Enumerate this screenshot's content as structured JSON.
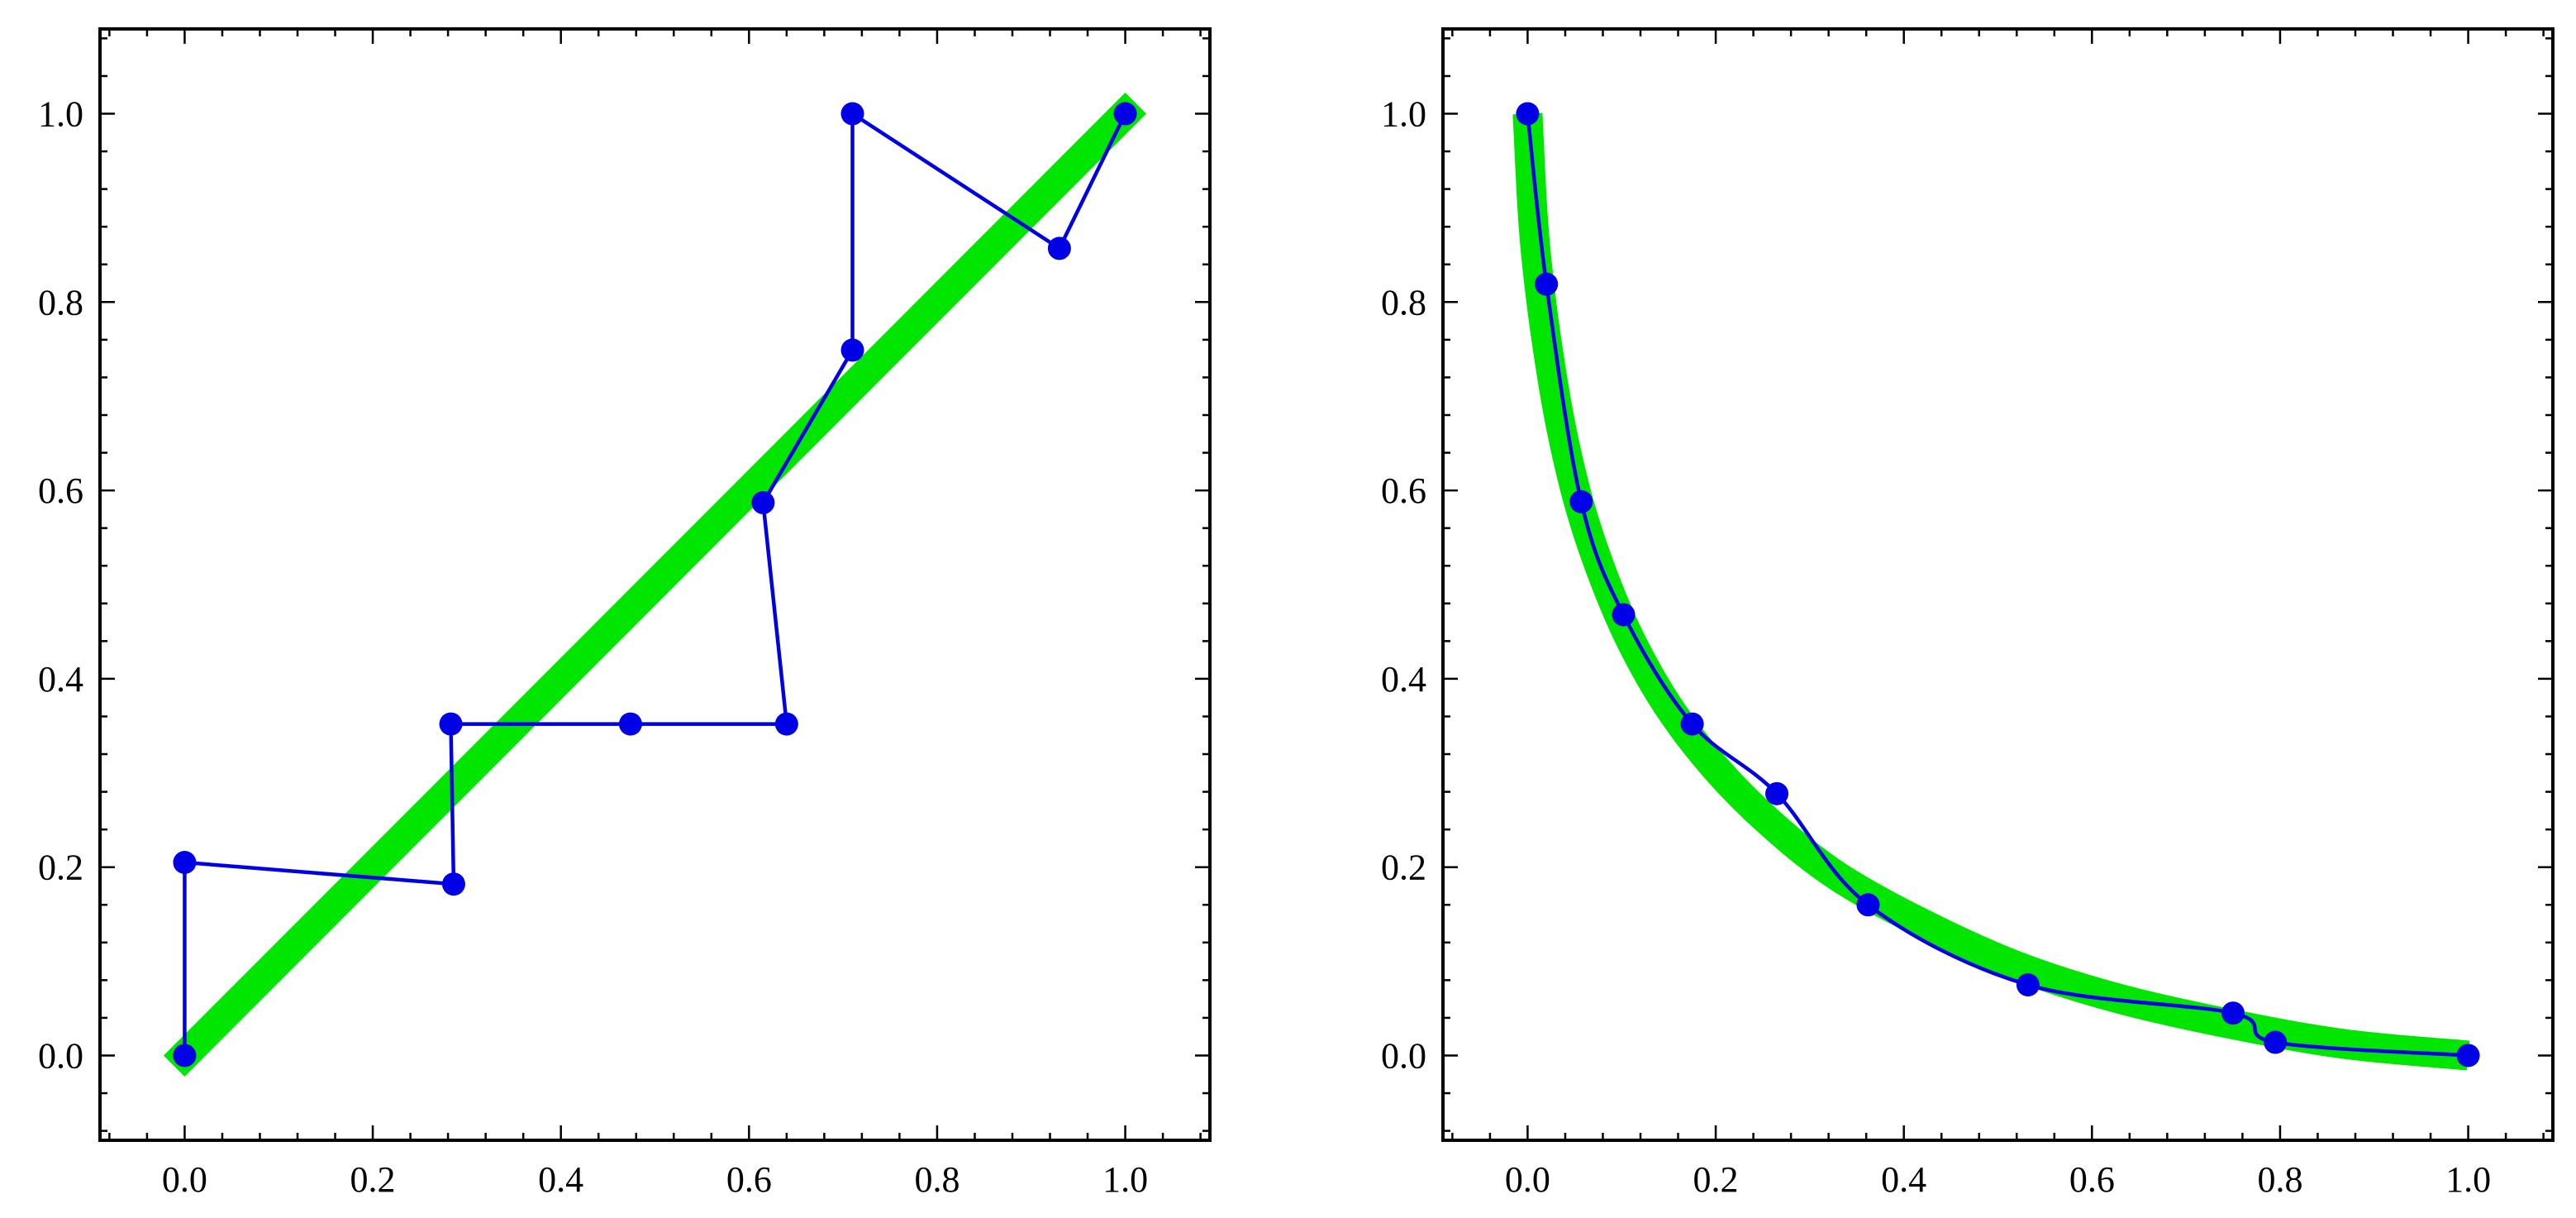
{
  "colors": {
    "reference_band": "#00e600",
    "series": "#0000e6",
    "frame": "#000000",
    "background": "#ffffff"
  },
  "chart_data": [
    {
      "type": "line",
      "title": "",
      "xlabel": "",
      "ylabel": "",
      "xlim": [
        -0.09,
        1.09
      ],
      "ylim": [
        -0.09,
        1.09
      ],
      "x_ticks": [
        0.0,
        0.2,
        0.4,
        0.6,
        0.8,
        1.0
      ],
      "y_ticks": [
        0.0,
        0.2,
        0.4,
        0.6,
        0.8,
        1.0
      ],
      "x_tick_labels": [
        "0.0",
        "0.2",
        "0.4",
        "0.6",
        "0.8",
        "1.0"
      ],
      "y_tick_labels": [
        "0.0",
        "0.2",
        "0.4",
        "0.6",
        "0.8",
        "1.0"
      ],
      "grid": false,
      "reference_curve": {
        "kind": "diagonal",
        "x": [
          0.0,
          1.0
        ],
        "y": [
          0.0,
          1.0
        ]
      },
      "series": [
        {
          "connection": "straight",
          "x": [
            0.0,
            0.0,
            0.286,
            0.283,
            0.474,
            0.64,
            0.615,
            0.71,
            0.71,
            0.93,
            1.0
          ],
          "y": [
            0.0,
            0.205,
            0.182,
            0.352,
            0.352,
            0.352,
            0.587,
            0.749,
            1.0,
            0.857,
            1.0
          ]
        }
      ]
    },
    {
      "type": "line",
      "title": "",
      "xlabel": "",
      "ylabel": "",
      "xlim": [
        -0.09,
        1.09
      ],
      "ylim": [
        -0.09,
        1.09
      ],
      "x_ticks": [
        0.0,
        0.2,
        0.4,
        0.6,
        0.8,
        1.0
      ],
      "y_ticks": [
        0.0,
        0.2,
        0.4,
        0.6,
        0.8,
        1.0
      ],
      "x_tick_labels": [
        "0.0",
        "0.2",
        "0.4",
        "0.6",
        "0.8",
        "1.0"
      ],
      "y_tick_labels": [
        "0.0",
        "0.2",
        "0.4",
        "0.6",
        "0.8",
        "1.0"
      ],
      "grid": false,
      "reference_curve": {
        "kind": "curve",
        "x": [
          0.0,
          0.005,
          0.01,
          0.02,
          0.035,
          0.055,
          0.08,
          0.11,
          0.15,
          0.2,
          0.26,
          0.33,
          0.42,
          0.52,
          0.63,
          0.75,
          0.87,
          1.0
        ],
        "y": [
          1.0,
          0.9,
          0.84,
          0.76,
          0.67,
          0.585,
          0.51,
          0.44,
          0.37,
          0.305,
          0.245,
          0.19,
          0.14,
          0.095,
          0.06,
          0.033,
          0.012,
          0.0
        ]
      },
      "series": [
        {
          "connection": "smooth",
          "x": [
            0.0,
            0.02,
            0.057,
            0.102,
            0.175,
            0.265,
            0.362,
            0.532,
            0.75,
            0.795,
            1.0
          ],
          "y": [
            1.0,
            0.819,
            0.588,
            0.468,
            0.352,
            0.278,
            0.16,
            0.075,
            0.045,
            0.014,
            0.0
          ]
        }
      ]
    }
  ]
}
